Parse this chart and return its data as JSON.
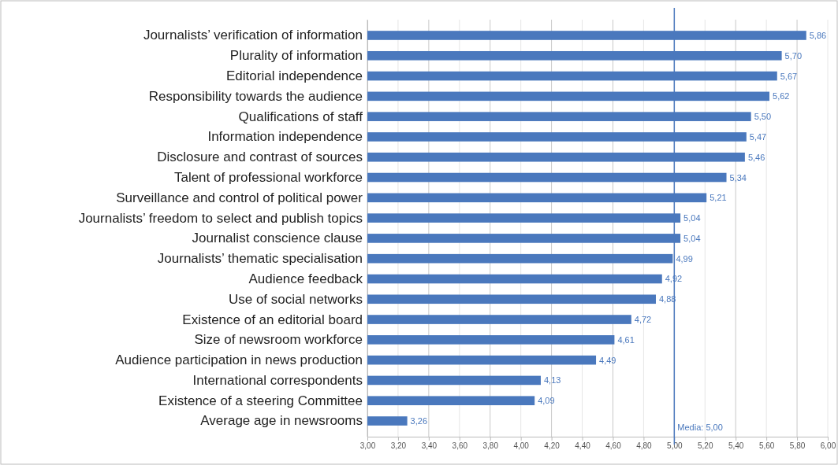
{
  "chart_data": {
    "type": "bar",
    "orientation": "horizontal",
    "categories": [
      "Journalists’ verification of information",
      "Plurality of information",
      "Editorial independence",
      "Responsibility towards the audience",
      "Qualifications of staff",
      "Information independence",
      "Disclosure and contrast of sources",
      "Talent of professional workforce",
      "Surveillance and control of political power",
      "Journalists’ freedom to select and publish topics",
      "Journalist conscience clause",
      "Journalists’ thematic specialisation",
      "Audience feedback",
      "Use of social networks",
      "Existence of an editorial board",
      "Size of newsroom workforce",
      "Audience participation in news production",
      "International correspondents",
      "Existence of a steering Committee",
      "Average age in newsrooms"
    ],
    "values": [
      5.86,
      5.7,
      5.67,
      5.62,
      5.5,
      5.47,
      5.46,
      5.34,
      5.21,
      5.04,
      5.04,
      4.99,
      4.92,
      4.88,
      4.72,
      4.61,
      4.49,
      4.13,
      4.09,
      3.26
    ],
    "value_labels": [
      "5,86",
      "5,70",
      "5,67",
      "5,62",
      "5,50",
      "5,47",
      "5,46",
      "5,34",
      "5,21",
      "5,04",
      "5,04",
      "4,99",
      "4,92",
      "4,88",
      "4,72",
      "4,61",
      "4,49",
      "4,13",
      "4,09",
      "3,26"
    ],
    "color": "#4a78bd",
    "xlim": [
      3,
      6
    ],
    "xticks": [
      {
        "value": 3,
        "label": "3,00"
      },
      {
        "value": 3.2,
        "label": "3,20"
      },
      {
        "value": 3.4,
        "label": "3,40"
      },
      {
        "value": 3.6,
        "label": "3,60"
      },
      {
        "value": 3.8,
        "label": "3,80"
      },
      {
        "value": 4,
        "label": "4,00"
      },
      {
        "value": 4.2,
        "label": "4,20"
      },
      {
        "value": 4.4,
        "label": "4,40"
      },
      {
        "value": 4.6,
        "label": "4,60"
      },
      {
        "value": 4.8,
        "label": "4,80"
      },
      {
        "value": 5,
        "label": "5,00"
      },
      {
        "value": 5.2,
        "label": "5,20"
      },
      {
        "value": 5.4,
        "label": "5,40"
      },
      {
        "value": 5.6,
        "label": "5,60"
      },
      {
        "value": 5.8,
        "label": "5,80"
      },
      {
        "value": 6,
        "label": "6,00"
      }
    ],
    "ref_lines": [
      {
        "axis": "x",
        "value": 5,
        "label": "Media: 5,00",
        "color": "#4a78bd"
      }
    ],
    "grid": "x"
  }
}
